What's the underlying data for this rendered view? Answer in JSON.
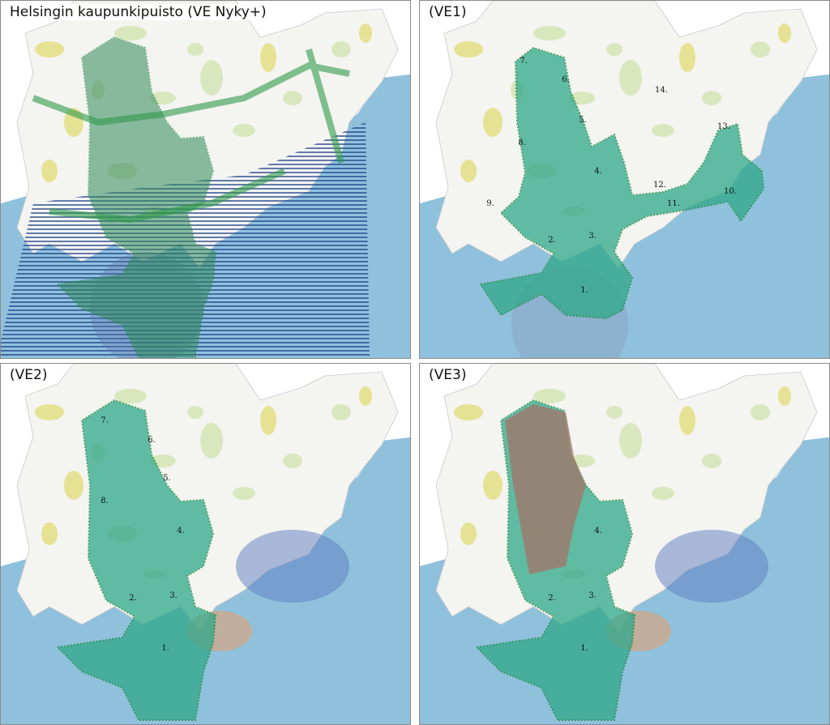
{
  "panels": [
    {
      "title": "Helsingin kaupunkipuisto (VE Nyky+)",
      "labels": []
    },
    {
      "title": "(VE1)",
      "labels": [
        "7.",
        "6.",
        "14.",
        "5.",
        "13.",
        "8.",
        "4.",
        "12.",
        "10.",
        "9.",
        "11.",
        "2.",
        "3.",
        "1."
      ]
    },
    {
      "title": "(VE2)",
      "labels": [
        "7.",
        "6.",
        "5.",
        "8.",
        "4.",
        "2.",
        "3.",
        "1."
      ]
    },
    {
      "title": "(VE3)",
      "labels": [
        "4.",
        "2.",
        "3.",
        "1."
      ]
    }
  ]
}
